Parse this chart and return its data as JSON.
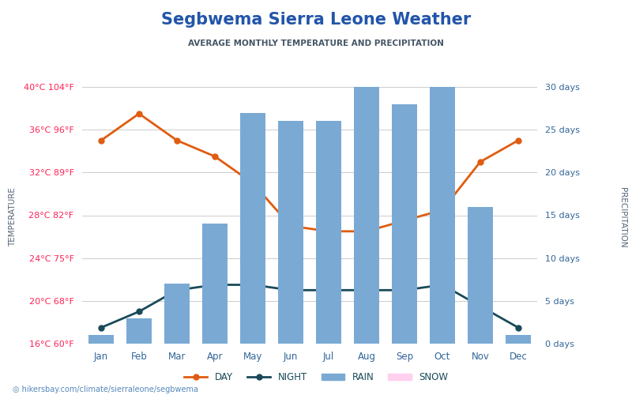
{
  "title": "Segbwema Sierra Leone Weather",
  "subtitle": "AVERAGE MONTHLY TEMPERATURE AND PRECIPITATION",
  "months": [
    "Jan",
    "Feb",
    "Mar",
    "Apr",
    "May",
    "Jun",
    "Jul",
    "Aug",
    "Sep",
    "Oct",
    "Nov",
    "Dec"
  ],
  "day_temps": [
    35,
    37.5,
    35,
    33.5,
    31,
    27,
    26.5,
    26.5,
    27.5,
    28.5,
    33,
    35
  ],
  "night_temps": [
    17.5,
    19,
    21,
    21.5,
    21.5,
    21,
    21,
    21,
    21,
    21.5,
    19.5,
    17.5
  ],
  "rain_days": [
    1,
    3,
    7,
    14,
    27,
    26,
    26,
    30,
    28,
    30,
    16,
    1
  ],
  "temp_ylim": [
    16,
    40
  ],
  "temp_yticks": [
    16,
    20,
    24,
    28,
    32,
    36,
    40
  ],
  "temp_ytick_labels": [
    "16°C 60°F",
    "20°C 68°F",
    "24°C 75°F",
    "28°C 82°F",
    "32°C 89°F",
    "36°C 96°F",
    "40°C 104°F"
  ],
  "precip_ylim": [
    0,
    30
  ],
  "precip_yticks": [
    0,
    5,
    10,
    15,
    20,
    25,
    30
  ],
  "precip_ytick_labels": [
    "0 days",
    "5 days",
    "10 days",
    "15 days",
    "20 days",
    "25 days",
    "30 days"
  ],
  "bar_color": "#7aaad4",
  "bar_alpha": 1.0,
  "day_line_color": "#e05c10",
  "night_line_color": "#1a4a5a",
  "background_color": "#ffffff",
  "title_color": "#2255aa",
  "subtitle_color": "#445566",
  "temp_label_color": "#ff2255",
  "precip_label_color": "#336699",
  "axis_label_color": "#556677",
  "footer_text": "hikersbay.com/climate/sierraleone/segbwema"
}
